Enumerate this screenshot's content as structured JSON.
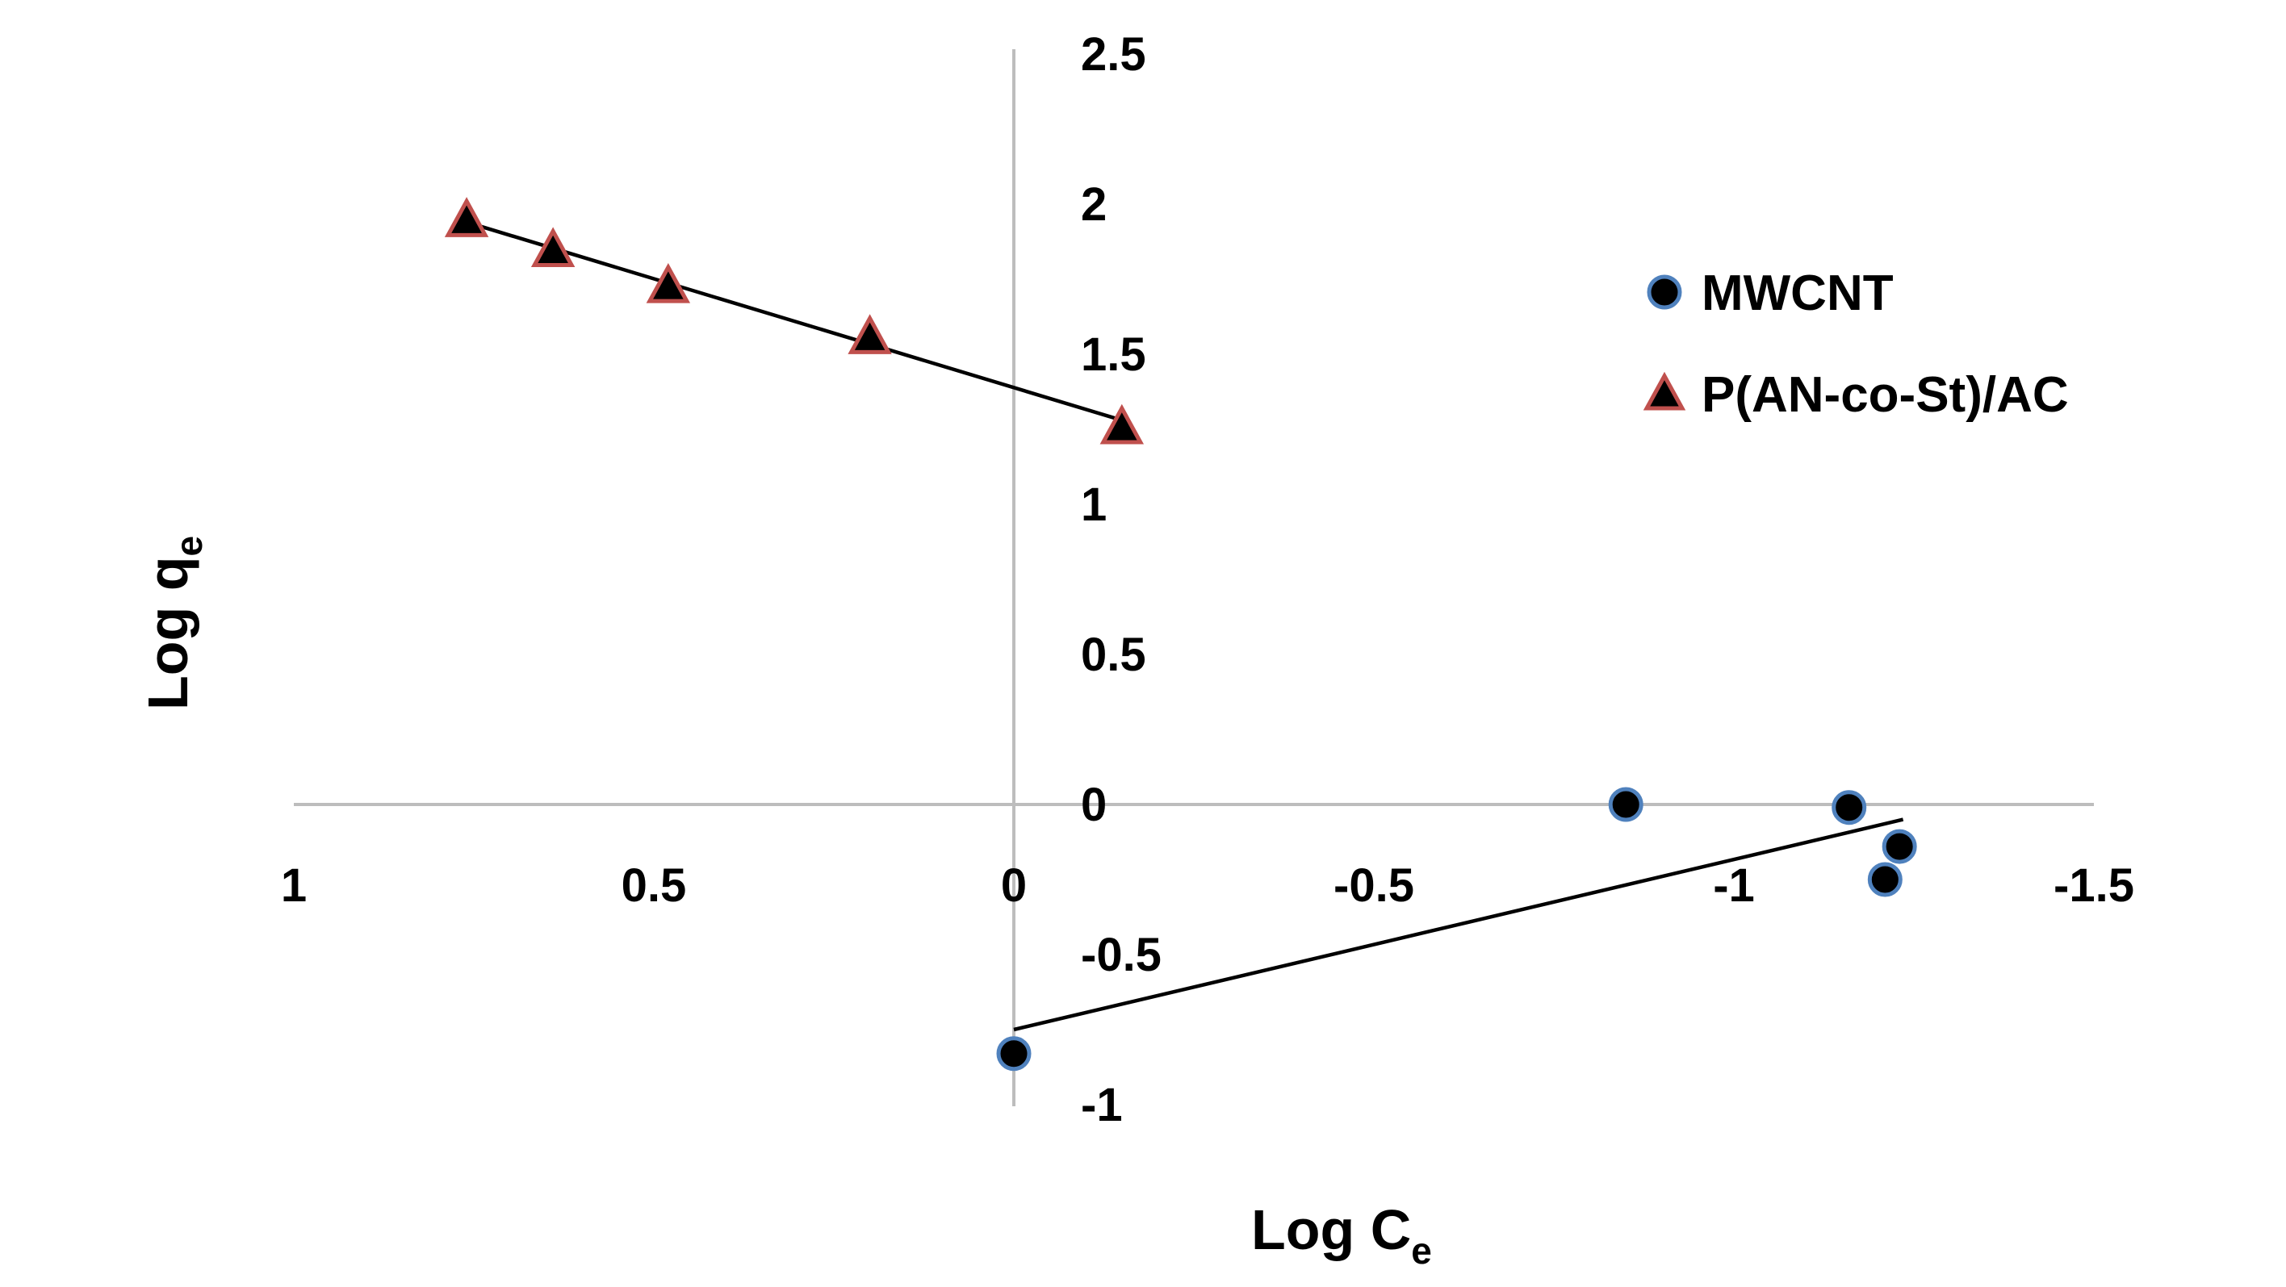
{
  "chart_data": {
    "type": "scatter",
    "title": "",
    "xlabel": "Log C",
    "xlabel_sub": "e",
    "ylabel": "Log q",
    "ylabel_sub": "e",
    "x_reversed": true,
    "xlim": [
      1,
      -1.5
    ],
    "ylim": [
      -1,
      2.5
    ],
    "x_ticks": [
      {
        "value": 1,
        "label": "1"
      },
      {
        "value": 0.5,
        "label": "0.5"
      },
      {
        "value": 0,
        "label": "0"
      },
      {
        "value": -0.5,
        "label": "-0.5"
      },
      {
        "value": -1,
        "label": "-1"
      },
      {
        "value": -1.5,
        "label": "-1.5"
      }
    ],
    "y_ticks": [
      {
        "value": 2.5,
        "label": "2.5"
      },
      {
        "value": 2,
        "label": "2"
      },
      {
        "value": 1.5,
        "label": "1.5"
      },
      {
        "value": 1,
        "label": "1"
      },
      {
        "value": 0.5,
        "label": "0.5"
      },
      {
        "value": 0,
        "label": "0"
      },
      {
        "value": -0.5,
        "label": "-0.5"
      },
      {
        "value": -1,
        "label": "-1"
      }
    ],
    "legend_position": "right",
    "series": [
      {
        "name": "MWCNT",
        "marker": "circle",
        "marker_fill": "#000000",
        "marker_edge": "#4f81bd",
        "x": [
          0.0,
          -0.85,
          -1.16,
          -1.23,
          -1.21
        ],
        "y": [
          -0.83,
          0.0,
          -0.01,
          -0.14,
          -0.25
        ],
        "trendline": {
          "x": [
            0.0,
            -1.235
          ],
          "y": [
            -0.75,
            -0.05
          ]
        }
      },
      {
        "name": "P(AN-co-St)/AC",
        "marker": "triangle",
        "marker_fill": "#000000",
        "marker_edge": "#c0504d",
        "x": [
          0.76,
          0.64,
          0.48,
          0.2,
          -0.15
        ],
        "y": [
          1.94,
          1.84,
          1.72,
          1.55,
          1.25
        ],
        "trendline": {
          "x": [
            0.76,
            -0.15
          ],
          "y": [
            1.94,
            1.28
          ]
        }
      }
    ]
  }
}
